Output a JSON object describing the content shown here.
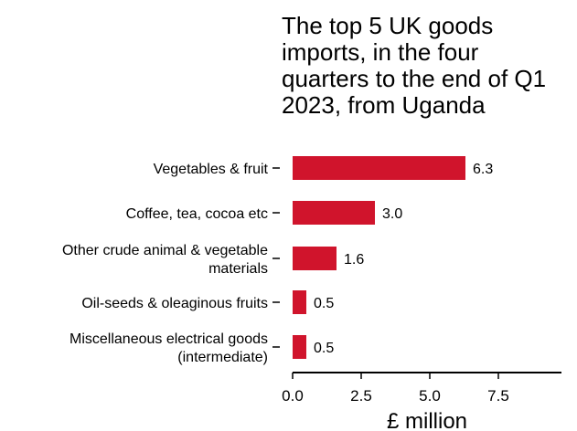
{
  "chart_data": {
    "type": "bar",
    "orientation": "horizontal",
    "title_lines": [
      "The top 5 UK goods",
      "imports, in the four",
      "quarters to the end of Q1",
      "2023, from Uganda"
    ],
    "categories": [
      "Vegetables & fruit",
      "Coffee, tea, cocoa etc",
      "Other crude animal & vegetable materials",
      "Oil-seeds & oleaginous fruits",
      "Miscellaneous electrical goods (intermediate)"
    ],
    "category_label_lines": [
      [
        "Vegetables & fruit"
      ],
      [
        "Coffee, tea, cocoa etc"
      ],
      [
        "Other crude animal & vegetable",
        "materials"
      ],
      [
        "Oil-seeds & oleaginous fruits"
      ],
      [
        "Miscellaneous electrical goods",
        "(intermediate)"
      ]
    ],
    "values": [
      6.3,
      3.0,
      1.6,
      0.5,
      0.5
    ],
    "data_labels": [
      "6.3",
      "3.0",
      "1.6",
      "0.5",
      "0.5"
    ],
    "xlabel": "£ million",
    "ylabel": "",
    "xlim": [
      0,
      9.8
    ],
    "xticks": [
      0,
      2.5,
      5,
      7.5
    ],
    "xtick_labels": [
      "0.0",
      "2.5",
      "5.0",
      "7.5"
    ],
    "bar_color": "#d0142c",
    "grid": false,
    "legend": "none"
  }
}
